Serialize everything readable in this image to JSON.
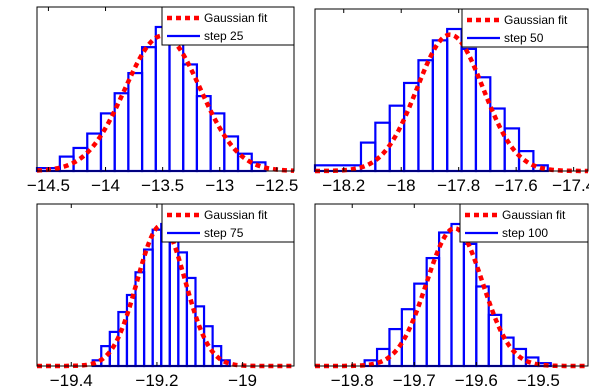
{
  "chart_data": [
    {
      "type": "bar",
      "title": "",
      "xlabel": "",
      "ylabel": "",
      "xlim": [
        -14.6,
        -12.35
      ],
      "ylim": [
        0,
        1
      ],
      "xticks": [
        -14.5,
        -14,
        -13.5,
        -13,
        -12.5
      ],
      "xtick_labels": [
        "−14.5",
        "−14",
        "−13.5",
        "−13",
        "−12.5"
      ],
      "bar_edges": [
        -14.6,
        -14.4,
        -14.28,
        -14.16,
        -14.04,
        -13.92,
        -13.8,
        -13.68,
        -13.56,
        -13.44,
        -13.32,
        -13.2,
        -13.08,
        -12.96,
        -12.84,
        -12.72,
        -12.6
      ],
      "bar_values": [
        0.02,
        0.1,
        0.16,
        0.26,
        0.4,
        0.54,
        0.68,
        0.86,
        1.0,
        0.9,
        0.74,
        0.52,
        0.4,
        0.24,
        0.12,
        0.06
      ],
      "fit": {
        "mean": -13.5,
        "sd": 0.33,
        "peak": 0.94
      },
      "legend": [
        {
          "label": "Gaussian fit",
          "color": "#ff0000",
          "dashed": true
        },
        {
          "label": "step 25",
          "color": "#0000ff",
          "dashed": false
        }
      ],
      "legend_position": "top-right",
      "grid": false
    },
    {
      "type": "bar",
      "title": "",
      "xlabel": "",
      "ylabel": "",
      "xlim": [
        -18.3,
        -17.35
      ],
      "ylim": [
        0,
        1
      ],
      "xticks": [
        -18.2,
        -18,
        -17.8,
        -17.6,
        -17.4
      ],
      "xtick_labels": [
        "−18.2",
        "−18",
        "−17.8",
        "−17.6",
        "−17.4"
      ],
      "bar_edges": [
        -18.3,
        -18.14,
        -18.09,
        -18.04,
        -17.99,
        -17.94,
        -17.89,
        -17.84,
        -17.79,
        -17.74,
        -17.69,
        -17.64,
        -17.59,
        -17.54,
        -17.49
      ],
      "bar_values": [
        0.04,
        0.2,
        0.34,
        0.46,
        0.62,
        0.78,
        0.92,
        1.0,
        0.86,
        0.66,
        0.44,
        0.3,
        0.14,
        0.04
      ],
      "fit": {
        "mean": -17.83,
        "sd": 0.115,
        "peak": 0.96
      },
      "legend": [
        {
          "label": "Gaussian fit",
          "color": "#ff0000",
          "dashed": true
        },
        {
          "label": "step 50",
          "color": "#0000ff",
          "dashed": false
        }
      ],
      "legend_position": "top-right",
      "grid": false
    },
    {
      "type": "bar",
      "title": "",
      "xlabel": "",
      "ylabel": "",
      "xlim": [
        -19.48,
        -18.88
      ],
      "ylim": [
        0,
        1
      ],
      "xticks": [
        -19.4,
        -19.2,
        -19
      ],
      "xtick_labels": [
        "−19.4",
        "−19.2",
        "−19"
      ],
      "bar_edges": [
        -19.35,
        -19.33,
        -19.31,
        -19.29,
        -19.27,
        -19.25,
        -19.23,
        -19.21,
        -19.19,
        -19.17,
        -19.15,
        -19.13,
        -19.11,
        -19.09,
        -19.07,
        -19.05,
        -19.03
      ],
      "bar_values": [
        0.04,
        0.14,
        0.24,
        0.38,
        0.5,
        0.66,
        0.82,
        0.96,
        1.0,
        0.92,
        0.8,
        0.62,
        0.42,
        0.28,
        0.14,
        0.04
      ],
      "fit": {
        "mean": -19.19,
        "sd": 0.056,
        "peak": 0.99
      },
      "legend": [
        {
          "label": "Gaussian fit",
          "color": "#ff0000",
          "dashed": true
        },
        {
          "label": "step 75",
          "color": "#0000ff",
          "dashed": false
        }
      ],
      "legend_position": "top-right",
      "grid": false
    },
    {
      "type": "bar",
      "title": "",
      "xlabel": "",
      "ylabel": "",
      "xlim": [
        -19.86,
        -19.42
      ],
      "ylim": [
        0,
        1
      ],
      "xticks": [
        -19.8,
        -19.7,
        -19.6,
        -19.5
      ],
      "xtick_labels": [
        "−19.8",
        "−19.7",
        "−19.6",
        "−19.5"
      ],
      "bar_edges": [
        -19.78,
        -19.76,
        -19.74,
        -19.72,
        -19.7,
        -19.68,
        -19.66,
        -19.64,
        -19.62,
        -19.6,
        -19.58,
        -19.56,
        -19.54,
        -19.52,
        -19.5,
        -19.48
      ],
      "bar_values": [
        0.04,
        0.12,
        0.26,
        0.4,
        0.58,
        0.76,
        0.94,
        1.0,
        0.86,
        0.56,
        0.36,
        0.2,
        0.12,
        0.06,
        0.02
      ],
      "fit": {
        "mean": -19.635,
        "sd": 0.045,
        "peak": 0.97
      },
      "legend": [
        {
          "label": "Gaussian fit",
          "color": "#ff0000",
          "dashed": true
        },
        {
          "label": "step 100",
          "color": "#0000ff",
          "dashed": false
        }
      ],
      "legend_position": "top-right",
      "grid": false
    }
  ],
  "colors": {
    "bars": "#0000ff",
    "fit": "#ff0000",
    "axes": "#000000"
  }
}
